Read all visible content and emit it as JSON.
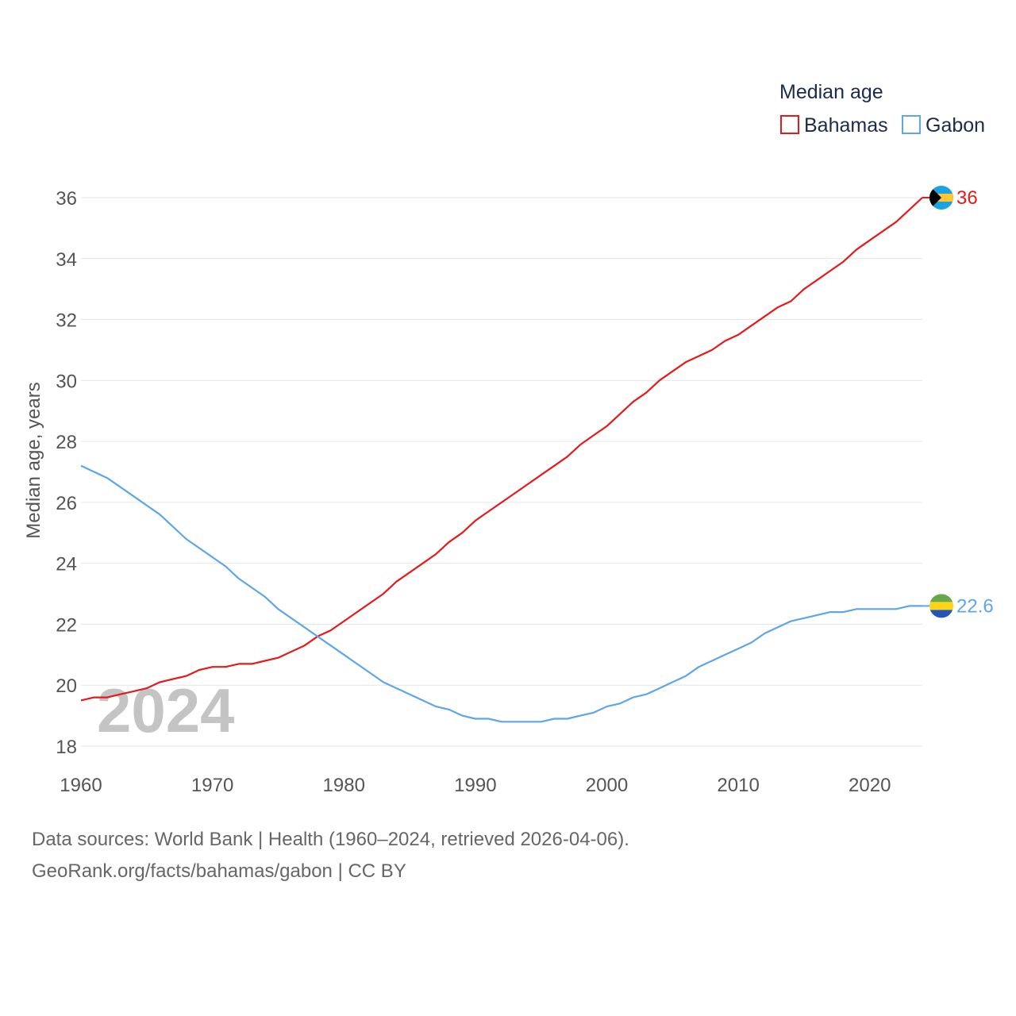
{
  "chart_data": {
    "type": "line",
    "title": "",
    "legend_title": "Median age",
    "xlabel": "",
    "ylabel": "Median age, years",
    "xlim": [
      1960,
      2024
    ],
    "ylim": [
      18,
      36
    ],
    "x_ticks": [
      1960,
      1970,
      1980,
      1990,
      2000,
      2010,
      2020
    ],
    "y_ticks": [
      18,
      20,
      22,
      24,
      26,
      28,
      30,
      32,
      34,
      36
    ],
    "watermark_year": "2024",
    "legend_position": "top-right",
    "x": [
      1960,
      1961,
      1962,
      1963,
      1964,
      1965,
      1966,
      1967,
      1968,
      1969,
      1970,
      1971,
      1972,
      1973,
      1974,
      1975,
      1976,
      1977,
      1978,
      1979,
      1980,
      1981,
      1982,
      1983,
      1984,
      1985,
      1986,
      1987,
      1988,
      1989,
      1990,
      1991,
      1992,
      1993,
      1994,
      1995,
      1996,
      1997,
      1998,
      1999,
      2000,
      2001,
      2002,
      2003,
      2004,
      2005,
      2006,
      2007,
      2008,
      2009,
      2010,
      2011,
      2012,
      2013,
      2014,
      2015,
      2016,
      2017,
      2018,
      2019,
      2020,
      2021,
      2022,
      2023,
      2024
    ],
    "series": [
      {
        "name": "Bahamas",
        "color": "#e41a1c",
        "end_label": "36",
        "flag": "bahamas-flag-icon",
        "values": [
          19.5,
          19.6,
          19.6,
          19.7,
          19.8,
          19.9,
          20.1,
          20.2,
          20.3,
          20.5,
          20.6,
          20.6,
          20.7,
          20.7,
          20.8,
          20.9,
          21.1,
          21.3,
          21.6,
          21.8,
          22.1,
          22.4,
          22.7,
          23.0,
          23.4,
          23.7,
          24.0,
          24.3,
          24.7,
          25.0,
          25.4,
          25.7,
          26.0,
          26.3,
          26.6,
          26.9,
          27.2,
          27.5,
          27.9,
          28.2,
          28.5,
          28.9,
          29.3,
          29.6,
          30.0,
          30.3,
          30.6,
          30.8,
          31.0,
          31.3,
          31.5,
          31.8,
          32.1,
          32.4,
          32.6,
          33.0,
          33.3,
          33.6,
          33.9,
          34.3,
          34.6,
          34.9,
          35.2,
          35.6,
          36.0
        ]
      },
      {
        "name": "Gabon",
        "color": "#5ea6e8",
        "end_label": "22.6",
        "flag": "gabon-flag-icon",
        "values": [
          27.2,
          27.0,
          26.8,
          26.5,
          26.2,
          25.9,
          25.6,
          25.2,
          24.8,
          24.5,
          24.2,
          23.9,
          23.5,
          23.2,
          22.9,
          22.5,
          22.2,
          21.9,
          21.6,
          21.3,
          21.0,
          20.7,
          20.4,
          20.1,
          19.9,
          19.7,
          19.5,
          19.3,
          19.2,
          19.0,
          18.9,
          18.9,
          18.8,
          18.8,
          18.8,
          18.8,
          18.9,
          18.9,
          19.0,
          19.1,
          19.3,
          19.4,
          19.6,
          19.7,
          19.9,
          20.1,
          20.3,
          20.6,
          20.8,
          21.0,
          21.2,
          21.4,
          21.7,
          21.9,
          22.1,
          22.2,
          22.3,
          22.4,
          22.4,
          22.5,
          22.5,
          22.5,
          22.5,
          22.6,
          22.6
        ]
      }
    ]
  },
  "footer": {
    "line1": "Data sources: World Bank | Health (1960–2024, retrieved 2026-04-06).",
    "line2": "GeoRank.org/facts/bahamas/gabon | CC BY"
  }
}
